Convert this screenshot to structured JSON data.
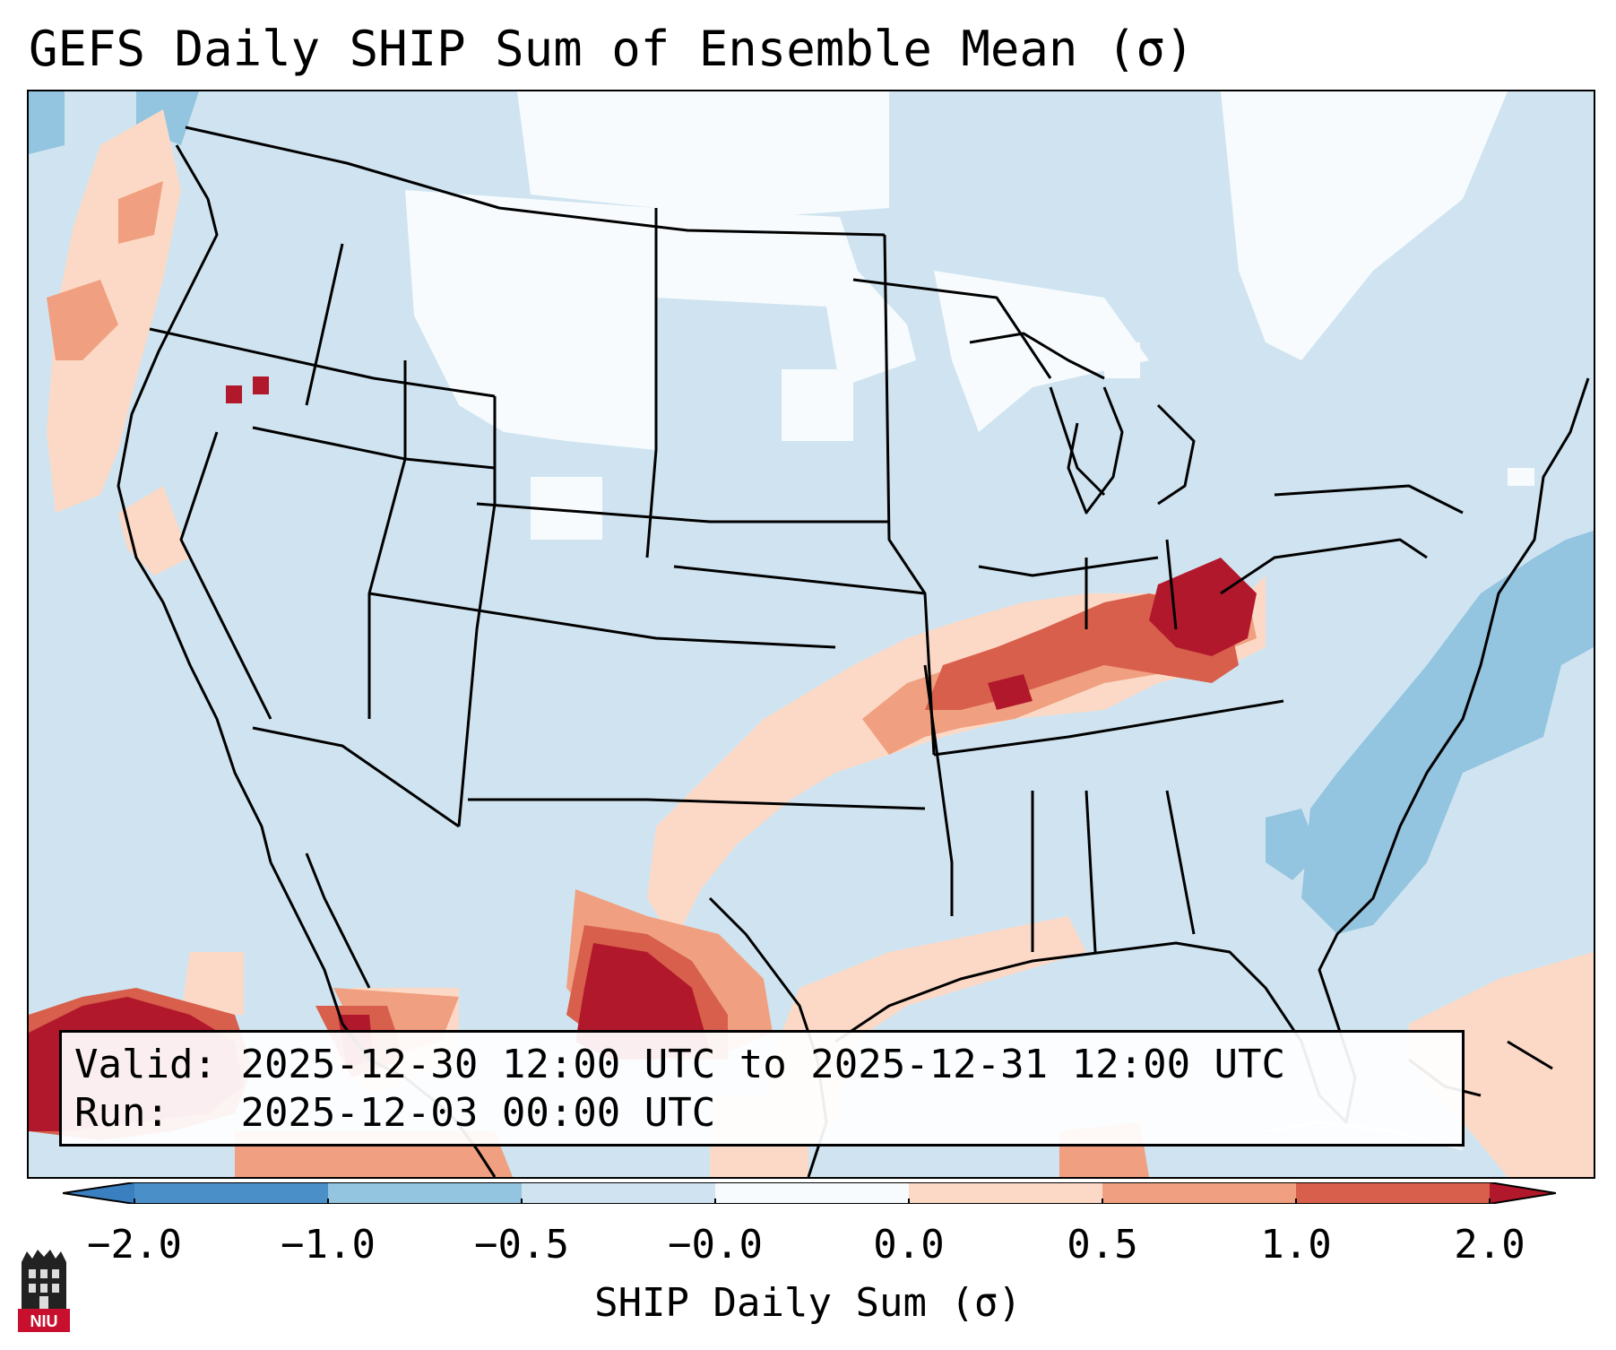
{
  "title": "GEFS Daily SHIP Sum of Ensemble Mean (σ)",
  "map": {
    "region": "Contiguous United States",
    "features": [
      "state-borders",
      "coastlines"
    ],
    "highlights": [
      {
        "name": "Ohio-Kentucky maximum",
        "category": ">2.0"
      },
      {
        "name": "South Texas / northeast Mexico maximum",
        "category": ">2.0"
      },
      {
        "name": "Eastern Pacific maximum",
        "category": ">2.0"
      },
      {
        "name": "Western Atlantic minimum",
        "category": "-1.0 to -0.5"
      }
    ]
  },
  "info": {
    "valid_label": "Valid:",
    "valid_value": "2025-12-30 12:00 UTC to 2025-12-31 12:00 UTC",
    "run_label": "Run:",
    "run_value": "2025-12-03 00:00 UTC"
  },
  "colorbar": {
    "label": "SHIP Daily Sum (σ)",
    "ticks": [
      "−2.0",
      "−1.0",
      "−0.5",
      "−0.0",
      "0.0",
      "0.5",
      "1.0",
      "2.0"
    ],
    "colors": {
      "under": "#3a7fbf",
      "c1": "#4a8fc8",
      "c2": "#93c4e0",
      "c3": "#cfe4f0",
      "c4": "#f7fbfd",
      "c5": "#fcd9c6",
      "c6": "#f0a080",
      "c7": "#d75f4c",
      "c8": "#b2182b",
      "over": "#b2182b"
    }
  },
  "logo": {
    "text": "NIU"
  }
}
